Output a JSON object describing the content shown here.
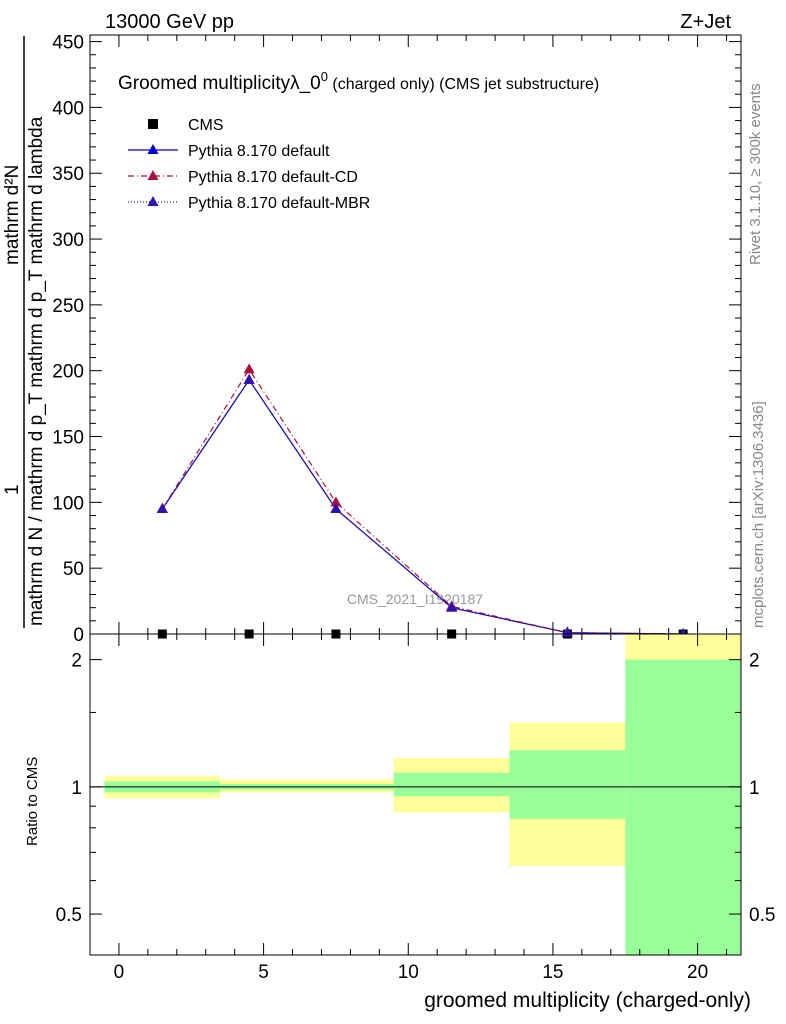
{
  "header": {
    "left_label": "13000 GeV pp",
    "right_label": "Z+Jet"
  },
  "side_labels": {
    "rivet": "Rivet 3.1.10, ≥ 300k events",
    "mcplots": "mcplots.cern.ch [arXiv:1306.3436]"
  },
  "watermark": "CMS_2021_I1920187",
  "chart_data": [
    {
      "type": "line",
      "title_main": "Groomed multiplicityλ_0",
      "title_sup": "0",
      "title_suffix": " (charged only) (CMS jet substructure)",
      "ylabel_line1": "1",
      "ylabel_line2": "mathrm d N / mathrm d p_T mathrm d p_T mathrm d lambda",
      "ylabel_numer": "mathrm d²N",
      "ylim": [
        0,
        455
      ],
      "yticks": [
        0,
        50,
        100,
        150,
        200,
        250,
        300,
        350,
        400,
        450
      ],
      "xlim": [
        -1,
        21.5
      ],
      "legend_position": "top-left",
      "series": [
        {
          "name": "CMS",
          "color": "#000000",
          "marker": "square",
          "x": [
            1.5,
            4.5,
            7.5,
            11.5,
            15.5,
            19.5
          ],
          "y": [
            0,
            0,
            0,
            0,
            0,
            0
          ]
        },
        {
          "name": "Pythia 8.170 default",
          "color": "#0000cc",
          "marker": "triangle",
          "line": "solid",
          "x": [
            1.5,
            4.5,
            7.5,
            11.5,
            15.5,
            19.5
          ],
          "y": [
            95,
            193,
            95,
            20,
            1,
            0
          ]
        },
        {
          "name": "Pythia 8.170 default-CD",
          "color": "#a8103a",
          "marker": "triangle",
          "line": "dashdot",
          "x": [
            1.5,
            4.5,
            7.5,
            11.5,
            15.5,
            19.5
          ],
          "y": [
            95,
            201,
            100,
            21,
            1,
            0
          ]
        },
        {
          "name": "Pythia 8.170 default-MBR",
          "color": "#3010b0",
          "marker": "triangle",
          "line": "dotted",
          "x": [
            1.5,
            4.5,
            7.5,
            11.5,
            15.5,
            19.5
          ],
          "y": [
            95,
            193,
            95,
            20,
            1,
            0
          ]
        }
      ]
    },
    {
      "type": "area",
      "ylabel": "Ratio to CMS",
      "xlabel": "groomed multiplicity (charged-only)",
      "xlim": [
        -1,
        21.5
      ],
      "ylim": [
        0.4,
        2.3
      ],
      "log_y": true,
      "yticks": [
        0.5,
        1,
        2
      ],
      "yticklabels": [
        "0.5",
        "1",
        "2"
      ],
      "xticks": [
        0,
        5,
        10,
        15,
        20
      ],
      "reference_line": 1,
      "bins": [
        {
          "lo": -0.5,
          "hi": 3.5,
          "stat_lo": 0.97,
          "stat_hi": 1.03,
          "total_lo": 0.94,
          "total_hi": 1.06
        },
        {
          "lo": 3.5,
          "hi": 9.5,
          "stat_lo": 0.985,
          "stat_hi": 1.015,
          "total_lo": 0.97,
          "total_hi": 1.04
        },
        {
          "lo": 9.5,
          "hi": 13.5,
          "stat_lo": 0.95,
          "stat_hi": 1.08,
          "total_lo": 0.87,
          "total_hi": 1.17
        },
        {
          "lo": 13.5,
          "hi": 17.5,
          "stat_lo": 0.84,
          "stat_hi": 1.22,
          "total_lo": 0.65,
          "total_hi": 1.42
        },
        {
          "lo": 17.5,
          "hi": 21.5,
          "stat_lo": 0.4,
          "stat_hi": 2.0,
          "total_lo": 0.4,
          "total_hi": 2.3
        }
      ],
      "colors": {
        "stat": "#99ff99",
        "total": "#ffff99"
      }
    }
  ]
}
